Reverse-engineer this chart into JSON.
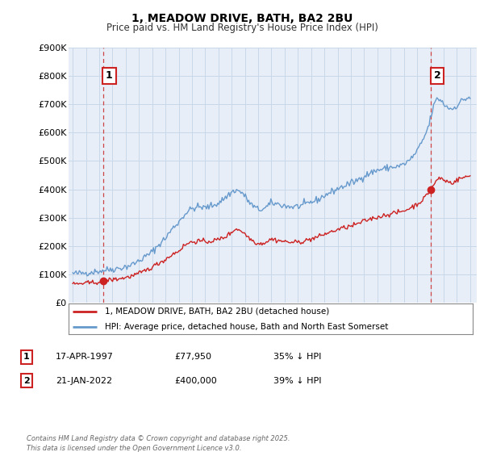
{
  "title": "1, MEADOW DRIVE, BATH, BA2 2BU",
  "subtitle": "Price paid vs. HM Land Registry's House Price Index (HPI)",
  "background_color": "#ffffff",
  "plot_bg_color": "#e8eef8",
  "xlim": [
    1994.7,
    2025.5
  ],
  "ylim": [
    0,
    900000
  ],
  "yticks": [
    0,
    100000,
    200000,
    300000,
    400000,
    500000,
    600000,
    700000,
    800000,
    900000
  ],
  "ytick_labels": [
    "£0",
    "£100K",
    "£200K",
    "£300K",
    "£400K",
    "£500K",
    "£600K",
    "£700K",
    "£800K",
    "£900K"
  ],
  "xticks": [
    1995,
    1996,
    1997,
    1998,
    1999,
    2000,
    2001,
    2002,
    2003,
    2004,
    2005,
    2006,
    2007,
    2008,
    2009,
    2010,
    2011,
    2012,
    2013,
    2014,
    2015,
    2016,
    2017,
    2018,
    2019,
    2020,
    2021,
    2022,
    2023,
    2024,
    2025
  ],
  "hpi_color": "#6699cc",
  "property_color": "#cc2222",
  "dashed_line_color": "#cc4444",
  "grid_color": "#c8d8e8",
  "legend_label_property": "1, MEADOW DRIVE, BATH, BA2 2BU (detached house)",
  "legend_label_hpi": "HPI: Average price, detached house, Bath and North East Somerset",
  "sale1_date": 1997.29,
  "sale1_price": 77950,
  "sale1_label": "1",
  "sale2_date": 2022.05,
  "sale2_price": 400000,
  "sale2_label": "2",
  "footer": "Contains HM Land Registry data © Crown copyright and database right 2025.\nThis data is licensed under the Open Government Licence v3.0.",
  "table_rows": [
    {
      "num": "1",
      "date": "17-APR-1997",
      "price": "£77,950",
      "hpi": "35% ↓ HPI"
    },
    {
      "num": "2",
      "date": "21-JAN-2022",
      "price": "£400,000",
      "hpi": "39% ↓ HPI"
    }
  ]
}
